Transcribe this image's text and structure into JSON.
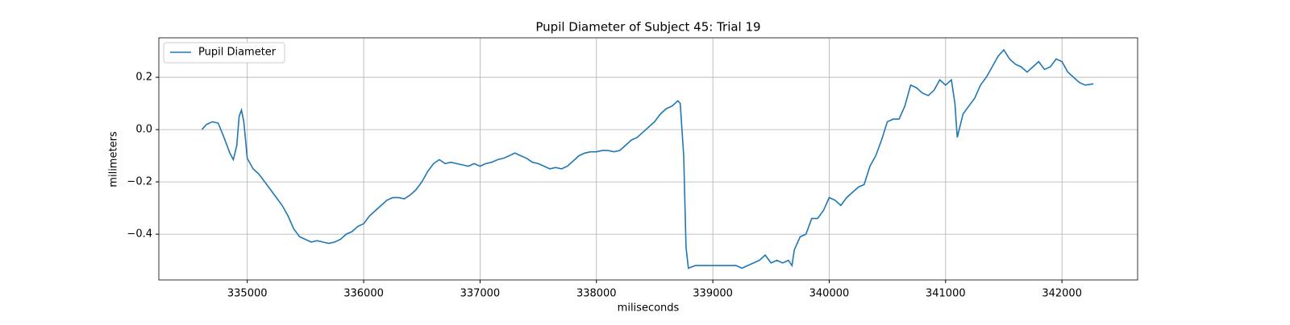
{
  "chart_data": {
    "type": "line",
    "title": "Pupil Diameter of Subject 45: Trial 19",
    "x_label": "miliseconds",
    "y_label": "milimeters",
    "x": [
      334610,
      334650,
      334700,
      334750,
      334800,
      334850,
      334880,
      334910,
      334930,
      334950,
      334970,
      335000,
      335050,
      335100,
      335150,
      335200,
      335250,
      335300,
      335350,
      335400,
      335450,
      335500,
      335550,
      335600,
      335650,
      335700,
      335750,
      335800,
      335850,
      335900,
      335950,
      336000,
      336050,
      336100,
      336150,
      336200,
      336250,
      336300,
      336350,
      336400,
      336450,
      336500,
      336550,
      336600,
      336650,
      336700,
      336750,
      336800,
      336850,
      336900,
      336950,
      337000,
      337050,
      337100,
      337150,
      337200,
      337250,
      337300,
      337350,
      337400,
      337450,
      337500,
      337550,
      337600,
      337650,
      337700,
      337750,
      337800,
      337850,
      337900,
      337950,
      338000,
      338050,
      338100,
      338150,
      338200,
      338250,
      338300,
      338350,
      338400,
      338450,
      338500,
      338550,
      338600,
      338650,
      338700,
      338720,
      338750,
      338770,
      338790,
      338850,
      339000,
      339100,
      339200,
      339250,
      339300,
      339350,
      339400,
      339450,
      339500,
      339550,
      339600,
      339650,
      339680,
      339700,
      339750,
      339800,
      339850,
      339900,
      339950,
      340000,
      340050,
      340100,
      340150,
      340200,
      340250,
      340300,
      340350,
      340400,
      340450,
      340500,
      340550,
      340600,
      340650,
      340700,
      340750,
      340800,
      340850,
      340900,
      340950,
      341000,
      341050,
      341080,
      341100,
      341150,
      341200,
      341250,
      341300,
      341350,
      341400,
      341450,
      341500,
      341550,
      341600,
      341650,
      341700,
      341750,
      341800,
      341850,
      341900,
      341950,
      342000,
      342050,
      342100,
      342150,
      342200,
      342270
    ],
    "series": [
      {
        "name": "Pupil Diameter",
        "color": "#1f77b4",
        "values": [
          0.0,
          0.02,
          0.03,
          0.025,
          -0.03,
          -0.09,
          -0.115,
          -0.06,
          0.05,
          0.075,
          0.03,
          -0.11,
          -0.15,
          -0.17,
          -0.2,
          -0.23,
          -0.26,
          -0.29,
          -0.33,
          -0.38,
          -0.41,
          -0.42,
          -0.43,
          -0.425,
          -0.43,
          -0.435,
          -0.43,
          -0.42,
          -0.4,
          -0.39,
          -0.37,
          -0.36,
          -0.33,
          -0.31,
          -0.29,
          -0.27,
          -0.26,
          -0.26,
          -0.265,
          -0.25,
          -0.23,
          -0.2,
          -0.16,
          -0.13,
          -0.115,
          -0.13,
          -0.125,
          -0.13,
          -0.135,
          -0.14,
          -0.13,
          -0.14,
          -0.13,
          -0.125,
          -0.115,
          -0.11,
          -0.1,
          -0.09,
          -0.1,
          -0.11,
          -0.125,
          -0.13,
          -0.14,
          -0.15,
          -0.145,
          -0.15,
          -0.14,
          -0.12,
          -0.1,
          -0.09,
          -0.085,
          -0.085,
          -0.08,
          -0.08,
          -0.085,
          -0.08,
          -0.06,
          -0.04,
          -0.03,
          -0.01,
          0.01,
          0.03,
          0.06,
          0.08,
          0.09,
          0.11,
          0.1,
          -0.1,
          -0.45,
          -0.53,
          -0.52,
          -0.52,
          -0.52,
          -0.52,
          -0.53,
          -0.52,
          -0.51,
          -0.5,
          -0.48,
          -0.51,
          -0.5,
          -0.51,
          -0.5,
          -0.52,
          -0.46,
          -0.41,
          -0.4,
          -0.34,
          -0.34,
          -0.31,
          -0.26,
          -0.27,
          -0.29,
          -0.26,
          -0.24,
          -0.22,
          -0.21,
          -0.14,
          -0.1,
          -0.04,
          0.03,
          0.04,
          0.04,
          0.09,
          0.17,
          0.16,
          0.14,
          0.13,
          0.15,
          0.19,
          0.17,
          0.19,
          0.1,
          -0.03,
          0.06,
          0.09,
          0.12,
          0.17,
          0.2,
          0.24,
          0.28,
          0.305,
          0.27,
          0.25,
          0.24,
          0.22,
          0.24,
          0.26,
          0.23,
          0.24,
          0.27,
          0.26,
          0.22,
          0.2,
          0.18,
          0.17,
          0.175
        ]
      }
    ],
    "xlim": [
      334240,
      342650
    ],
    "ylim": [
      -0.575,
      0.351
    ],
    "xticks": [
      335000,
      336000,
      337000,
      338000,
      339000,
      340000,
      341000,
      342000
    ],
    "yticks": [
      {
        "value": -0.4,
        "label": "−0.4"
      },
      {
        "value": -0.2,
        "label": "−0.2"
      },
      {
        "value": 0,
        "label": "0.0"
      },
      0.2
    ],
    "grid": true,
    "legend": "upper left"
  }
}
